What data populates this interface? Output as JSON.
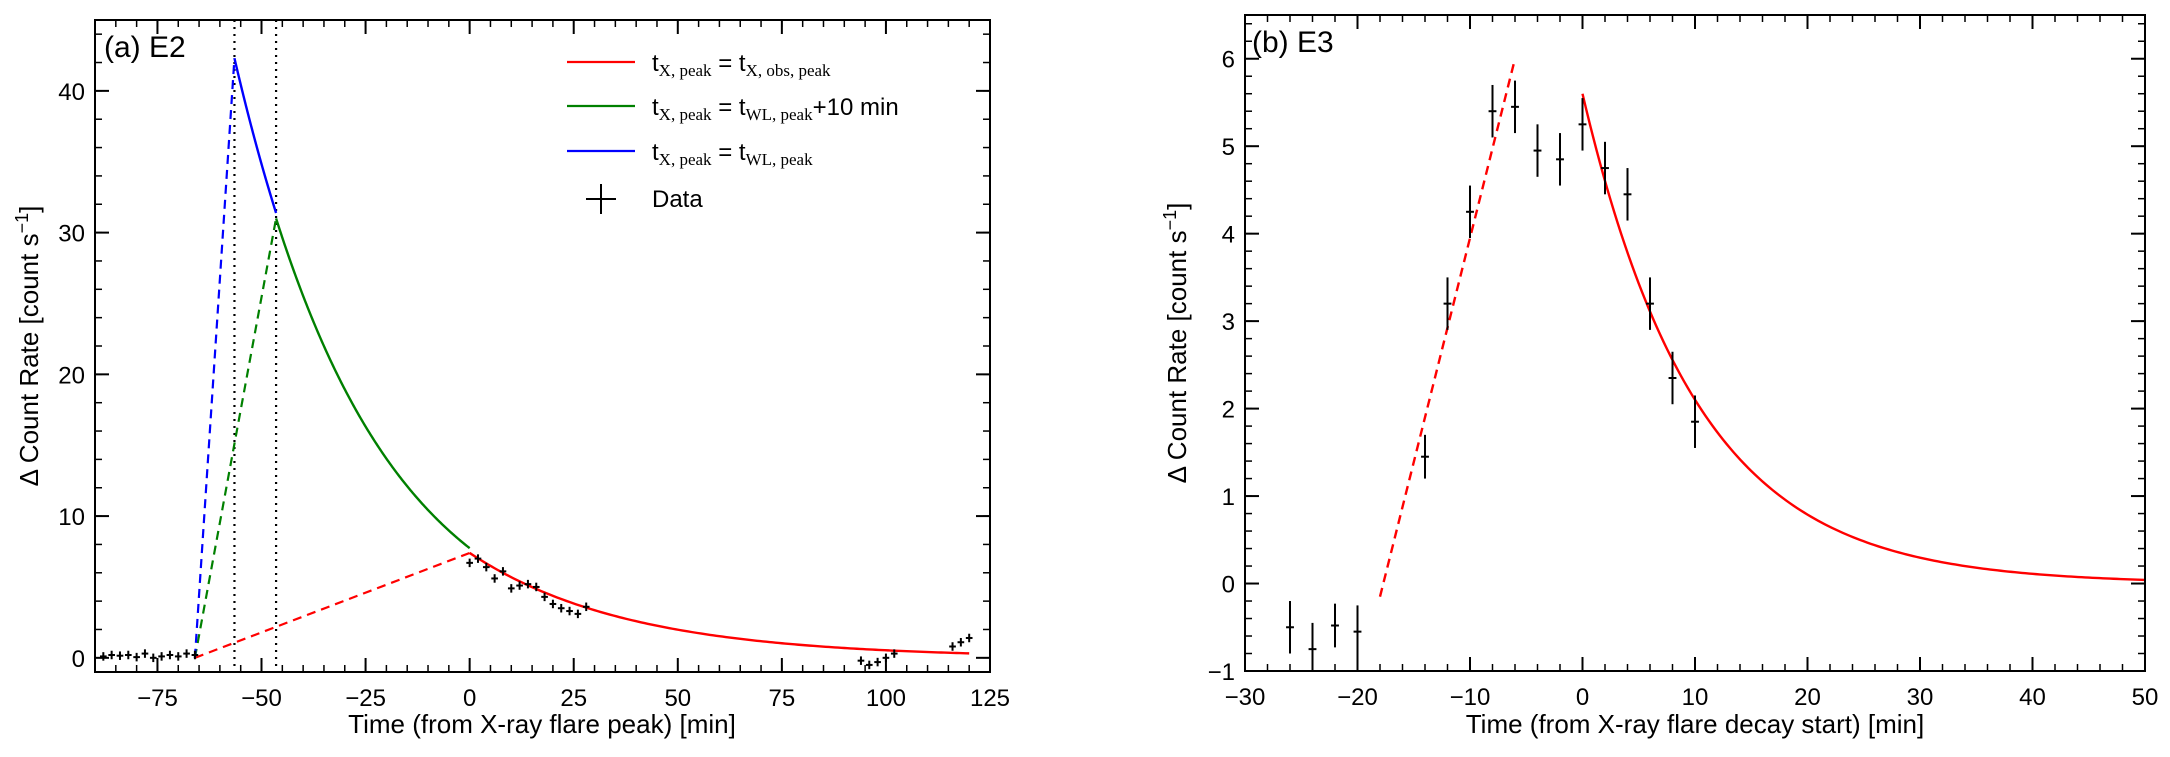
{
  "chart_data": [
    {
      "panel_label": "(a) E2",
      "type": "line",
      "xlabel": "Time (from X-ray flare peak) [min]",
      "ylabel_prefix": "Δ Count Rate [count s",
      "ylabel_sup": "−1",
      "ylabel_suffix": "]",
      "xlim": [
        -90,
        125
      ],
      "ylim": [
        -1,
        45
      ],
      "xticks": [
        -75,
        -50,
        -25,
        0,
        25,
        50,
        75,
        100,
        125
      ],
      "xtick_labels": [
        "−75",
        "−50",
        "−25",
        "0",
        "25",
        "50",
        "75",
        "100",
        "125"
      ],
      "yticks": [
        0,
        10,
        20,
        30,
        40
      ],
      "ytick_labels": [
        "0",
        "10",
        "20",
        "30",
        "40"
      ],
      "vlines": [
        -56.5,
        -46.5
      ],
      "legend": {
        "placement": "top-right",
        "entries": [
          {
            "key": "red",
            "color": "#ff0000",
            "kind": "line",
            "lhs": "t",
            "lhs_sub": "X, peak",
            "eq": " = ",
            "rhs": "t",
            "rhs_sub": "X, obs, peak",
            "tail": ""
          },
          {
            "key": "green",
            "color": "#008000",
            "kind": "line",
            "lhs": "t",
            "lhs_sub": "X, peak",
            "eq": " = ",
            "rhs": "t",
            "rhs_sub": "WL, peak",
            "tail": "+10 min"
          },
          {
            "key": "blue",
            "color": "#0000ff",
            "kind": "line",
            "lhs": "t",
            "lhs_sub": "X, peak",
            "eq": " = ",
            "rhs": "t",
            "rhs_sub": "WL, peak",
            "tail": ""
          },
          {
            "key": "data",
            "color": "#000000",
            "kind": "marker",
            "label": "Data"
          }
        ]
      },
      "series": [
        {
          "name": "red",
          "color": "#ff0000",
          "rise": {
            "x": [
              -66,
              0
            ],
            "y": [
              0,
              7.4
            ]
          },
          "decay": {
            "t0": 0,
            "A": 7.4,
            "tau": 38,
            "x_end": 120
          }
        },
        {
          "name": "green",
          "color": "#008000",
          "rise": {
            "x": [
              -66,
              -46.5
            ],
            "y": [
              0,
              31
            ]
          },
          "decay": {
            "t0": -46.5,
            "A": 31,
            "tau": 33.5,
            "x_end": 0
          }
        },
        {
          "name": "blue",
          "color": "#0000ff",
          "rise": {
            "x": [
              -66,
              -56.5
            ],
            "y": [
              0,
              42.3
            ]
          },
          "decay": {
            "t0": -56.5,
            "A": 42.3,
            "tau": 33.5,
            "x_end": -46.5
          }
        }
      ],
      "data": {
        "x": [
          -88,
          -86,
          -84,
          -82,
          -80,
          -78,
          -76,
          -74,
          -72,
          -70,
          -68,
          -66,
          0,
          2,
          4,
          6,
          8,
          10,
          12,
          14,
          16,
          18,
          20,
          22,
          24,
          26,
          28,
          94,
          96,
          98,
          100,
          102,
          116,
          118,
          120
        ],
        "y": [
          0.1,
          0.2,
          0.15,
          0.2,
          0.05,
          0.3,
          0.0,
          0.1,
          0.2,
          0.1,
          0.3,
          0.2,
          6.7,
          7.0,
          6.4,
          5.6,
          6.1,
          4.9,
          5.1,
          5.2,
          5.0,
          4.3,
          3.8,
          3.5,
          3.3,
          3.1,
          3.6,
          -0.2,
          -0.5,
          -0.3,
          0.0,
          0.3,
          0.8,
          1.1,
          1.4
        ],
        "xerr": 0.8,
        "yerr": 0.3
      }
    },
    {
      "panel_label": "(b) E3",
      "type": "line",
      "xlabel": "Time (from X-ray flare decay start) [min]",
      "ylabel_prefix": "Δ Count Rate [count s",
      "ylabel_sup": "−1",
      "ylabel_suffix": "]",
      "xlim": [
        -30,
        50
      ],
      "ylim": [
        -1,
        6.5
      ],
      "xticks": [
        -30,
        -20,
        -10,
        0,
        10,
        20,
        30,
        40,
        50
      ],
      "xtick_labels": [
        "−30",
        "−20",
        "−10",
        "0",
        "10",
        "20",
        "30",
        "40",
        "50"
      ],
      "yticks": [
        -1,
        0,
        1,
        2,
        3,
        4,
        5,
        6
      ],
      "ytick_labels": [
        "−1",
        "0",
        "1",
        "2",
        "3",
        "4",
        "5",
        "6"
      ],
      "series": [
        {
          "name": "red-rise",
          "color": "#ff0000",
          "style": "dashed",
          "x": [
            -18,
            -6
          ],
          "y": [
            -0.15,
            6.0
          ]
        },
        {
          "name": "red-decay",
          "color": "#ff0000",
          "style": "solid",
          "decay": {
            "t0": 0,
            "A": 5.6,
            "tau": 10.2,
            "x_end": 50
          }
        }
      ],
      "data": {
        "x": [
          -26,
          -24,
          -22,
          -20,
          -14,
          -12,
          -10,
          -8,
          -6,
          -4,
          -2,
          0,
          2,
          4,
          6,
          8,
          10
        ],
        "y": [
          -0.5,
          -0.75,
          -0.48,
          -0.55,
          1.45,
          3.2,
          4.25,
          5.4,
          5.45,
          4.95,
          4.85,
          5.25,
          4.75,
          4.45,
          3.2,
          2.35,
          1.85
        ],
        "xerr": 0.35,
        "yerr": [
          0.3,
          0.3,
          0.25,
          0.3,
          0.25,
          0.3,
          0.3,
          0.3,
          0.3,
          0.3,
          0.3,
          0.3,
          0.3,
          0.3,
          0.3,
          0.3,
          0.3
        ]
      }
    }
  ]
}
